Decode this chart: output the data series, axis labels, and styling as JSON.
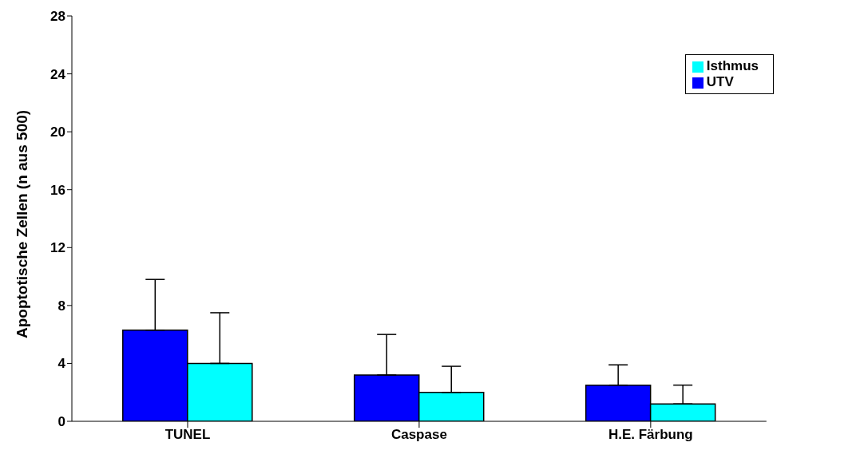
{
  "chart_data": {
    "type": "bar",
    "ylabel": "Apoptotische Zellen (n aus 500)",
    "categories": [
      "TUNEL",
      "Caspase",
      "H.E. Färbung"
    ],
    "series": [
      {
        "name": "UTV",
        "color": "#0000ff",
        "values": [
          6.3,
          3.2,
          2.5
        ],
        "errors": [
          [
            6.3,
            9.8
          ],
          [
            3.2,
            6.0
          ],
          [
            2.5,
            3.9
          ]
        ]
      },
      {
        "name": "Isthmus",
        "color": "#00ffff",
        "values": [
          4.0,
          2.0,
          1.2
        ],
        "errors": [
          [
            4.0,
            7.5
          ],
          [
            2.0,
            3.8
          ],
          [
            1.2,
            2.5
          ]
        ]
      }
    ],
    "ylim": [
      0,
      28
    ],
    "yticks": [
      0,
      4,
      8,
      12,
      16,
      20,
      24,
      28
    ],
    "grid": false,
    "legend": "top right"
  }
}
